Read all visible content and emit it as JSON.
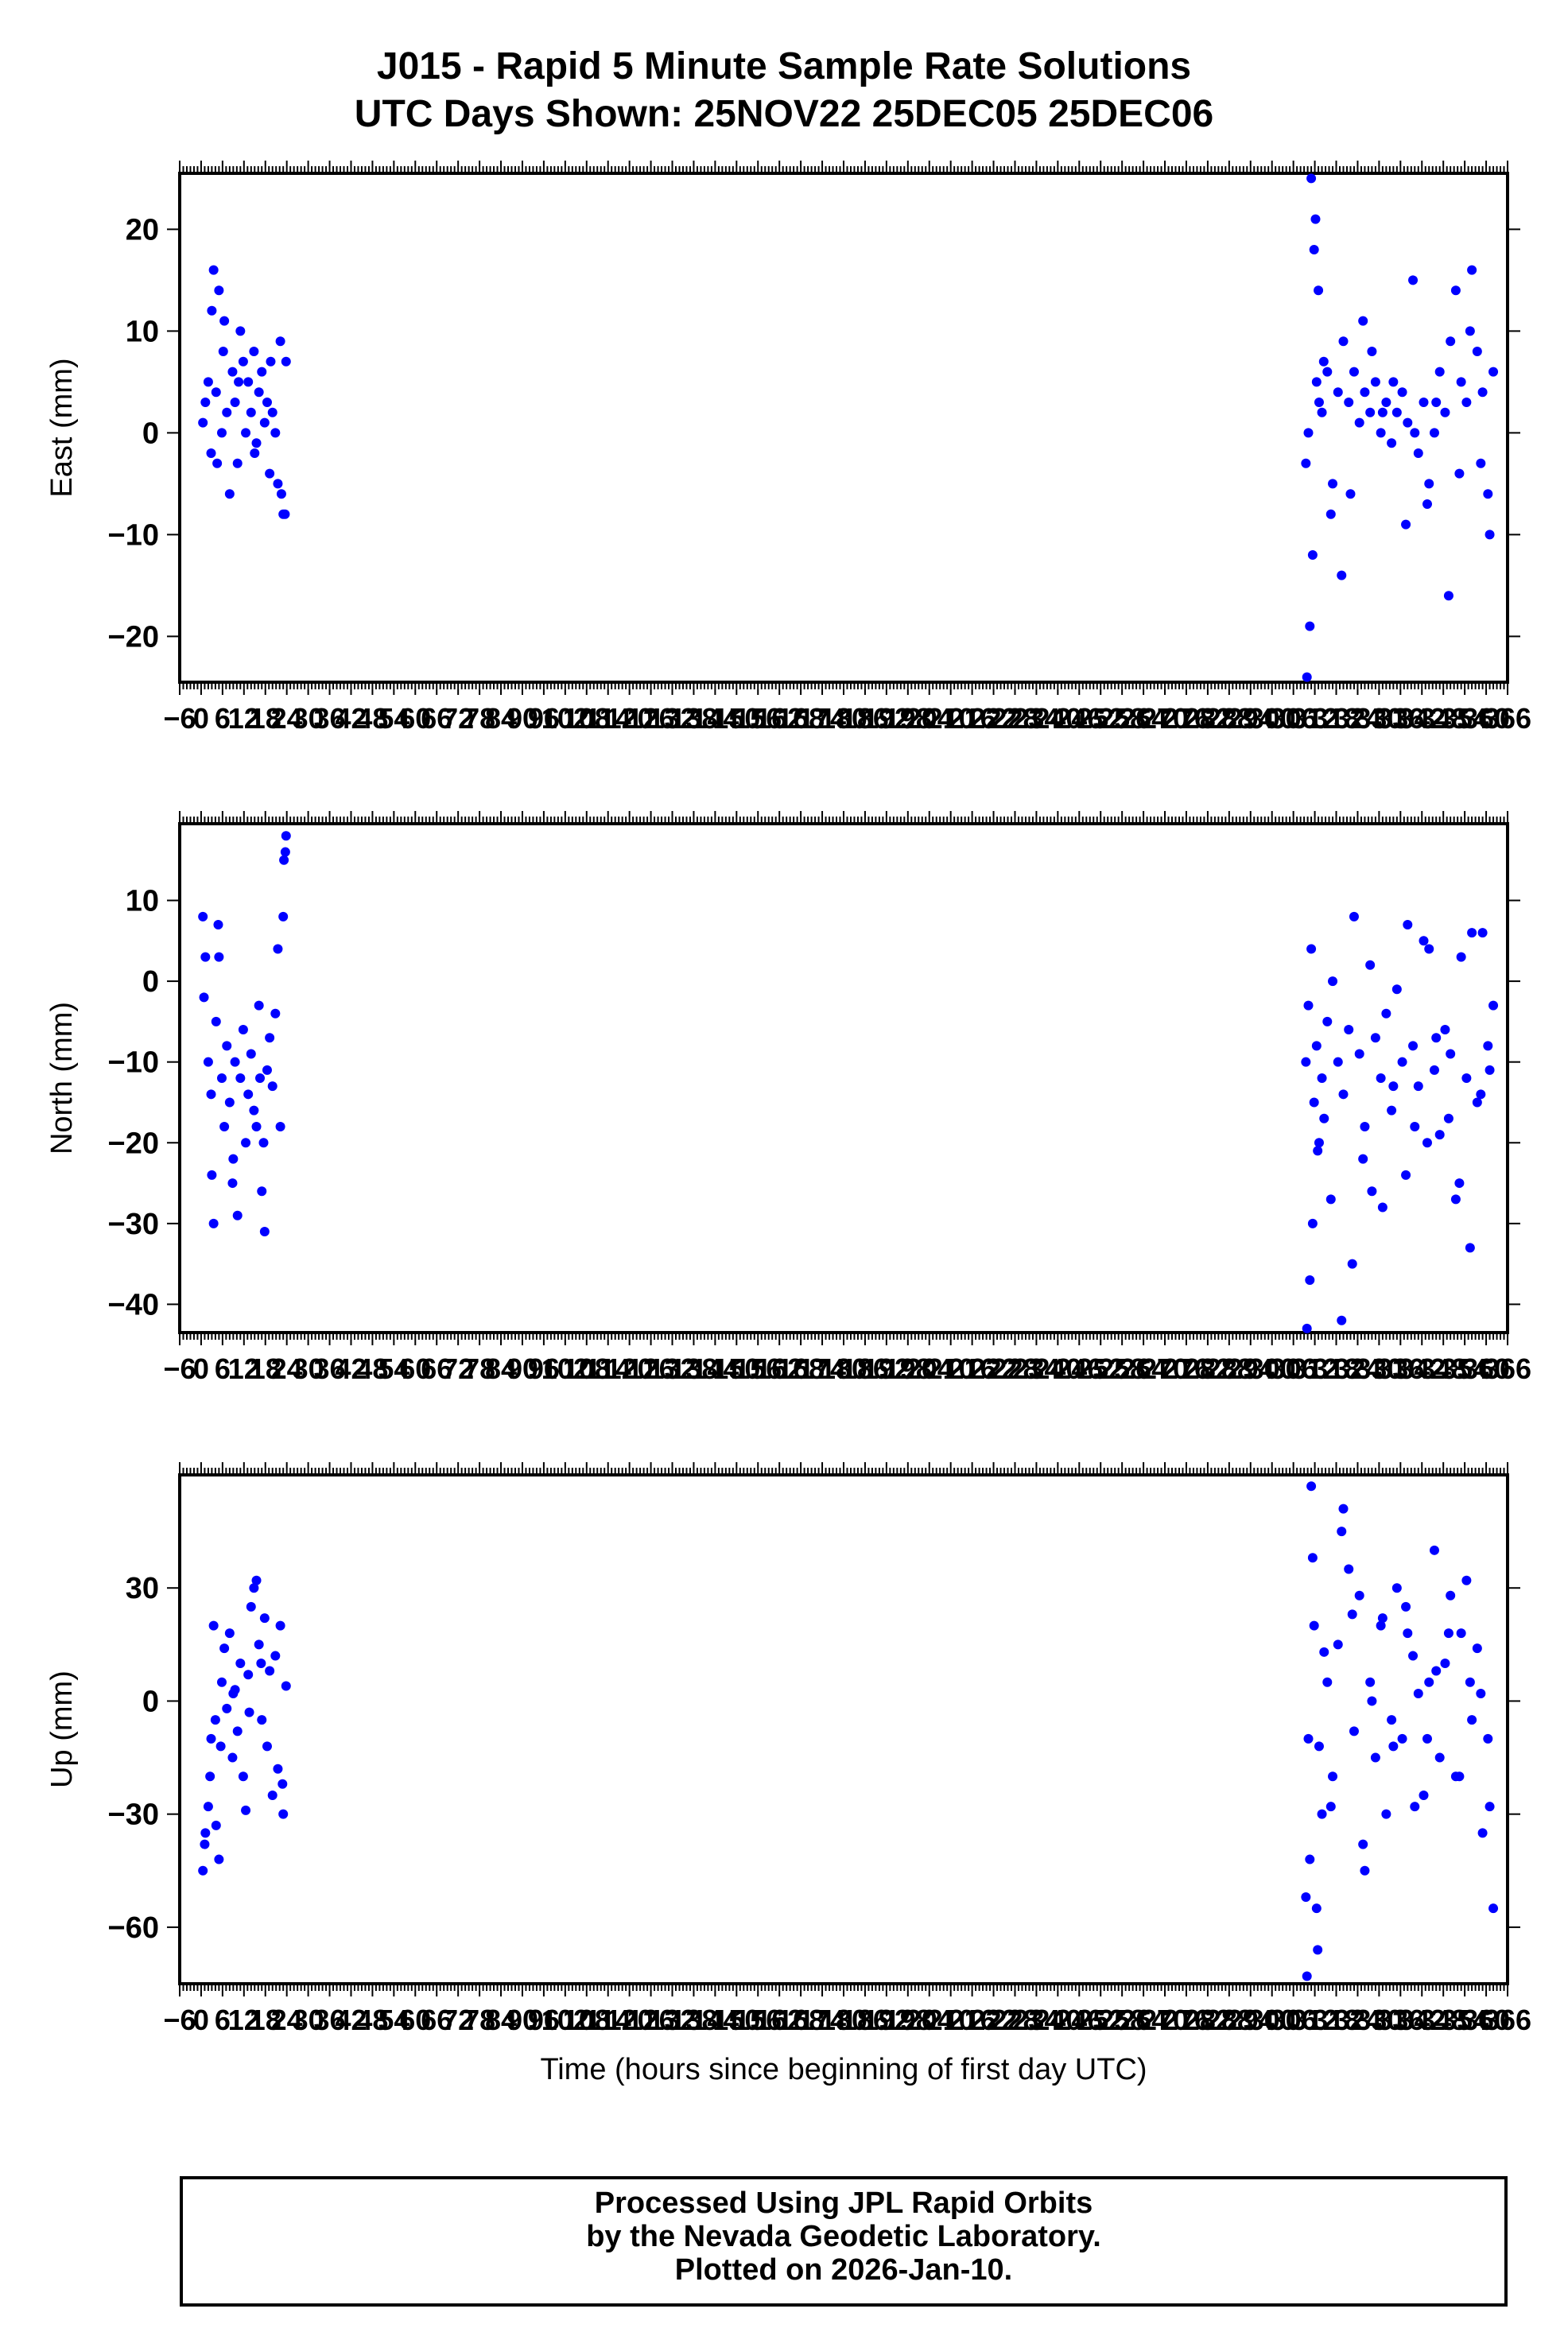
{
  "title": {
    "line1": "J015 - Rapid 5 Minute Sample Rate Solutions",
    "line2": "UTC Days Shown:  25NOV22 25DEC05 25DEC06"
  },
  "footer": {
    "line1": "Processed Using JPL Rapid Orbits",
    "line2": "by the Nevada Geodetic Laboratory.",
    "line3": "Plotted on 2026-Jan-10."
  },
  "colors": {
    "points": "#0000ff",
    "axes": "#000000",
    "background": "#ffffff"
  },
  "chart_data": [
    {
      "type": "scatter",
      "ylabel": "East (mm)",
      "xlabel": "",
      "xlim": [
        -6,
        366
      ],
      "ylim": [
        -24.5,
        25.5
      ],
      "yticks": [
        20,
        10,
        0,
        -10,
        -20
      ],
      "yticklabels": [
        "20",
        "10",
        "0",
        "−10",
        "−20"
      ],
      "xticks": [
        -6,
        0,
        6,
        12,
        18,
        24,
        30,
        36,
        42,
        48,
        54,
        60,
        66,
        72,
        78,
        84,
        90,
        96,
        102,
        108,
        114,
        120,
        126,
        132,
        138,
        144,
        150,
        156,
        162,
        168,
        174,
        180,
        186,
        192,
        198,
        204,
        210,
        216,
        222,
        228,
        234,
        240,
        246,
        252,
        258,
        264,
        270,
        276,
        282,
        288,
        294,
        300,
        306,
        312,
        318,
        324,
        330,
        336,
        342,
        348,
        354,
        360,
        366
      ],
      "xticklabels": [
        "−6",
        "0",
        "6",
        "12",
        "18",
        "24",
        "30",
        "36",
        "42",
        "48",
        "54",
        "60",
        "66",
        "72",
        "78",
        "84",
        "90",
        "96",
        "102",
        "108",
        "114",
        "120",
        "126",
        "132",
        "138",
        "144",
        "150",
        "156",
        "162",
        "168",
        "174",
        "180",
        "186",
        "192",
        "198",
        "204",
        "210",
        "216",
        "222",
        "228",
        "234",
        "240",
        "246",
        "252",
        "258",
        "264",
        "270",
        "276",
        "282",
        "288",
        "294",
        "300",
        "306",
        "312",
        "318",
        "324",
        "330",
        "336",
        "342",
        "348",
        "354",
        "360",
        "366"
      ],
      "series": [
        {
          "x": [
            0.5,
            1.2,
            2.0,
            2.8,
            3.5,
            4.2,
            5.0,
            5.8,
            6.5,
            7.2,
            8.0,
            8.8,
            9.5,
            10.2,
            11.0,
            11.8,
            12.5,
            13.2,
            14.0,
            14.8,
            15.5,
            16.2,
            17.0,
            17.8,
            18.5,
            19.2,
            20.0,
            20.8,
            21.5,
            22.2,
            23.0,
            23.8,
            3.0,
            4.5,
            6.2,
            15.0,
            19.5,
            22.5,
            23.5,
            10.5
          ],
          "y": [
            1,
            3,
            5,
            -2,
            16,
            4,
            14,
            0,
            11,
            2,
            -6,
            6,
            3,
            -3,
            10,
            7,
            0,
            5,
            2,
            8,
            -1,
            4,
            6,
            1,
            3,
            -4,
            2,
            0,
            -5,
            9,
            -8,
            7,
            12,
            -3,
            8,
            -2,
            7,
            -6,
            -8,
            5
          ]
        },
        {
          "x": [
            309.5,
            310.2,
            311.0,
            311.8,
            312.5,
            313.2,
            314.0,
            315.5,
            317.0,
            318.5,
            320.0,
            321.5,
            323.0,
            324.5,
            326.0,
            327.5,
            329.0,
            330.5,
            332.0,
            333.5,
            335.0,
            336.5,
            338.0,
            339.5,
            341.0,
            342.5,
            344.0,
            345.5,
            347.0,
            348.5,
            350.0,
            351.5,
            353.0,
            354.5,
            356.0,
            357.5,
            359.0,
            360.5,
            362.0,
            309.8,
            310.6,
            311.4,
            312.2,
            313.0,
            316.5,
            319.5,
            325.5,
            331.0,
            337.5,
            343.5,
            349.5,
            352.5,
            355.5,
            358.5,
            361.0,
            314.5,
            322.0,
            328.0,
            334.0,
            340.0,
            346.0
          ],
          "y": [
            -3,
            0,
            25,
            18,
            5,
            3,
            2,
            6,
            -5,
            4,
            9,
            3,
            6,
            1,
            4,
            2,
            5,
            0,
            3,
            -1,
            2,
            4,
            1,
            15,
            -2,
            3,
            -5,
            0,
            6,
            2,
            9,
            14,
            5,
            3,
            16,
            8,
            4,
            -6,
            6,
            -24,
            -19,
            -12,
            21,
            14,
            -8,
            -14,
            11,
            2,
            -9,
            -7,
            -16,
            -4,
            10,
            -3,
            -10,
            7,
            -6,
            8,
            5,
            0,
            3
          ]
        }
      ]
    },
    {
      "type": "scatter",
      "ylabel": "North (mm)",
      "xlabel": "",
      "xlim": [
        -6,
        366
      ],
      "ylim": [
        -43.5,
        19.5
      ],
      "yticks": [
        10,
        0,
        -10,
        -20,
        -30,
        -40
      ],
      "yticklabels": [
        "10",
        "0",
        "−10",
        "−20",
        "−30",
        "−40"
      ],
      "xticks": [
        -6,
        0,
        6,
        12,
        18,
        24,
        30,
        36,
        42,
        48,
        54,
        60,
        66,
        72,
        78,
        84,
        90,
        96,
        102,
        108,
        114,
        120,
        126,
        132,
        138,
        144,
        150,
        156,
        162,
        168,
        174,
        180,
        186,
        192,
        198,
        204,
        210,
        216,
        222,
        228,
        234,
        240,
        246,
        252,
        258,
        264,
        270,
        276,
        282,
        288,
        294,
        300,
        306,
        312,
        318,
        324,
        330,
        336,
        342,
        348,
        354,
        360,
        366
      ],
      "xticklabels": [
        "−6",
        "0",
        "6",
        "12",
        "18",
        "24",
        "30",
        "36",
        "42",
        "48",
        "54",
        "60",
        "66",
        "72",
        "78",
        "84",
        "90",
        "96",
        "102",
        "108",
        "114",
        "120",
        "126",
        "132",
        "138",
        "144",
        "150",
        "156",
        "162",
        "168",
        "174",
        "180",
        "186",
        "192",
        "198",
        "204",
        "210",
        "216",
        "222",
        "228",
        "234",
        "240",
        "246",
        "252",
        "258",
        "264",
        "270",
        "276",
        "282",
        "288",
        "294",
        "300",
        "306",
        "312",
        "318",
        "324",
        "330",
        "336",
        "342",
        "348",
        "354",
        "360",
        "366"
      ],
      "series": [
        {
          "x": [
            0.5,
            1.2,
            2.0,
            2.8,
            3.5,
            4.2,
            5.0,
            5.8,
            6.5,
            7.2,
            8.0,
            8.8,
            9.5,
            10.2,
            11.0,
            11.8,
            12.5,
            13.2,
            14.0,
            14.8,
            15.5,
            16.2,
            17.0,
            17.8,
            18.5,
            19.2,
            20.0,
            20.8,
            21.5,
            22.2,
            23.0,
            23.8,
            0.8,
            3.0,
            4.8,
            9.0,
            16.5,
            17.5,
            23.2,
            23.6
          ],
          "y": [
            8,
            3,
            -10,
            -14,
            -30,
            -5,
            3,
            -12,
            -18,
            -8,
            -15,
            -25,
            -10,
            -29,
            -12,
            -6,
            -20,
            -14,
            -9,
            -16,
            -18,
            -3,
            -26,
            -31,
            -11,
            -7,
            -13,
            -4,
            4,
            -18,
            8,
            18,
            -2,
            -24,
            7,
            -22,
            -12,
            -20,
            15,
            16
          ]
        },
        {
          "x": [
            309.5,
            310.2,
            311.0,
            311.8,
            312.5,
            313.2,
            314.0,
            315.5,
            317.0,
            318.5,
            320.0,
            321.5,
            323.0,
            324.5,
            326.0,
            327.5,
            329.0,
            330.5,
            332.0,
            333.5,
            335.0,
            336.5,
            338.0,
            339.5,
            341.0,
            342.5,
            344.0,
            345.5,
            347.0,
            348.5,
            350.0,
            351.5,
            353.0,
            354.5,
            356.0,
            357.5,
            359.0,
            360.5,
            362.0,
            309.8,
            310.6,
            311.4,
            316.5,
            319.5,
            322.5,
            325.5,
            331.0,
            337.5,
            343.5,
            349.5,
            352.5,
            355.5,
            358.5,
            361.0,
            312.8,
            314.6,
            328.0,
            334.0,
            340.0,
            346.0
          ],
          "y": [
            -10,
            -3,
            4,
            -15,
            -8,
            -20,
            -12,
            -5,
            0,
            -10,
            -14,
            -6,
            8,
            -9,
            -18,
            2,
            -7,
            -12,
            -4,
            -16,
            -1,
            -10,
            7,
            -8,
            -13,
            5,
            4,
            -11,
            -19,
            -6,
            -9,
            -27,
            3,
            -12,
            6,
            -15,
            6,
            -8,
            -3,
            -43,
            -37,
            -30,
            -27,
            -42,
            -35,
            -22,
            -28,
            -24,
            -20,
            -17,
            -25,
            -33,
            -14,
            -11,
            -21,
            -17,
            -26,
            -13,
            -18,
            -7
          ]
        }
      ]
    },
    {
      "type": "scatter",
      "ylabel": "Up (mm)",
      "xlabel": "Time (hours since beginning of first day UTC)",
      "xlim": [
        -6,
        366
      ],
      "ylim": [
        -75,
        60
      ],
      "yticks": [
        30,
        0,
        -30,
        -60
      ],
      "yticklabels": [
        "30",
        "0",
        "−30",
        "−60"
      ],
      "xticks": [
        -6,
        0,
        6,
        12,
        18,
        24,
        30,
        36,
        42,
        48,
        54,
        60,
        66,
        72,
        78,
        84,
        90,
        96,
        102,
        108,
        114,
        120,
        126,
        132,
        138,
        144,
        150,
        156,
        162,
        168,
        174,
        180,
        186,
        192,
        198,
        204,
        210,
        216,
        222,
        228,
        234,
        240,
        246,
        252,
        258,
        264,
        270,
        276,
        282,
        288,
        294,
        300,
        306,
        312,
        318,
        324,
        330,
        336,
        342,
        348,
        354,
        360,
        366
      ],
      "xticklabels": [
        "−6",
        "0",
        "6",
        "12",
        "18",
        "24",
        "30",
        "36",
        "42",
        "48",
        "54",
        "60",
        "66",
        "72",
        "78",
        "84",
        "90",
        "96",
        "102",
        "108",
        "114",
        "120",
        "126",
        "132",
        "138",
        "144",
        "150",
        "156",
        "162",
        "168",
        "174",
        "180",
        "186",
        "192",
        "198",
        "204",
        "210",
        "216",
        "222",
        "228",
        "234",
        "240",
        "246",
        "252",
        "258",
        "264",
        "270",
        "276",
        "282",
        "288",
        "294",
        "300",
        "306",
        "312",
        "318",
        "324",
        "330",
        "336",
        "342",
        "348",
        "354",
        "360",
        "366"
      ],
      "series": [
        {
          "x": [
            0.5,
            1.2,
            2.0,
            2.8,
            3.5,
            4.2,
            5.0,
            5.8,
            6.5,
            7.2,
            8.0,
            8.8,
            9.5,
            10.2,
            11.0,
            11.8,
            12.5,
            13.2,
            14.0,
            14.8,
            15.5,
            16.2,
            17.0,
            17.8,
            18.5,
            19.2,
            20.0,
            20.8,
            21.5,
            22.2,
            23.0,
            23.8,
            1.0,
            2.5,
            4.0,
            5.5,
            9.0,
            13.5,
            16.8,
            22.8
          ],
          "y": [
            -45,
            -35,
            -28,
            -10,
            20,
            -33,
            -42,
            5,
            14,
            -2,
            18,
            -15,
            3,
            -8,
            10,
            -20,
            -29,
            7,
            25,
            30,
            32,
            15,
            -5,
            22,
            -12,
            8,
            -25,
            12,
            -18,
            20,
            -30,
            4,
            -38,
            -20,
            -5,
            -12,
            2,
            -3,
            10,
            -22
          ]
        },
        {
          "x": [
            309.5,
            310.2,
            311.0,
            311.8,
            312.5,
            313.2,
            314.0,
            315.5,
            317.0,
            318.5,
            320.0,
            321.5,
            323.0,
            324.5,
            326.0,
            327.5,
            329.0,
            330.5,
            332.0,
            333.5,
            335.0,
            336.5,
            338.0,
            339.5,
            341.0,
            342.5,
            344.0,
            345.5,
            347.0,
            348.5,
            350.0,
            351.5,
            353.0,
            354.5,
            356.0,
            357.5,
            359.0,
            360.5,
            362.0,
            309.8,
            310.6,
            311.4,
            312.8,
            314.6,
            316.5,
            319.5,
            322.5,
            325.5,
            328.0,
            331.0,
            334.0,
            337.5,
            340.0,
            343.5,
            346.0,
            349.5,
            352.5,
            355.5,
            358.5,
            361.0
          ],
          "y": [
            -52,
            -10,
            57,
            20,
            -55,
            -12,
            -30,
            5,
            -20,
            15,
            51,
            35,
            -8,
            28,
            -45,
            5,
            -15,
            20,
            -30,
            -5,
            30,
            -10,
            18,
            12,
            2,
            -25,
            5,
            40,
            -15,
            10,
            28,
            -20,
            18,
            32,
            -5,
            14,
            -35,
            -10,
            -55,
            -73,
            -42,
            38,
            -66,
            13,
            -28,
            45,
            23,
            -38,
            0,
            22,
            -12,
            25,
            -28,
            -10,
            8,
            18,
            -20,
            5,
            2,
            -28
          ]
        }
      ]
    }
  ]
}
